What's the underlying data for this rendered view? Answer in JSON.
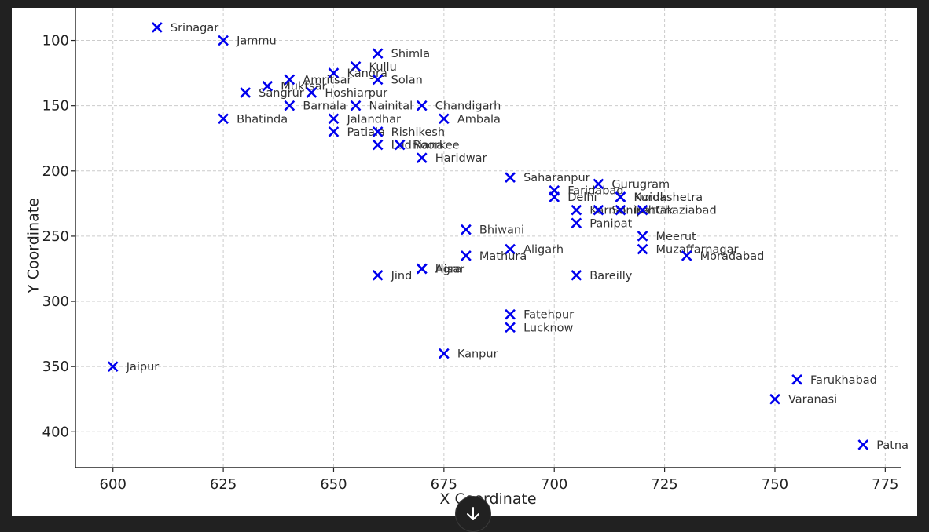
{
  "chart_data": {
    "type": "scatter",
    "xlabel": "X Coordinate",
    "ylabel": "Y Coordinate",
    "xlim": [
      591.5,
      778.5
    ],
    "ylim": [
      427.5,
      75
    ],
    "y_inverted": true,
    "grid": true,
    "x_ticks": [
      "600",
      "625",
      "650",
      "675",
      "700",
      "725",
      "750",
      "775"
    ],
    "y_ticks": [
      "100",
      "150",
      "200",
      "250",
      "300",
      "350",
      "400"
    ],
    "marker": "x",
    "marker_color": "#0000ee",
    "points": [
      {
        "label": "Srinagar",
        "x": 610,
        "y": 90
      },
      {
        "label": "Jammu",
        "x": 625,
        "y": 100
      },
      {
        "label": "Shimla",
        "x": 660,
        "y": 110
      },
      {
        "label": "Kullu",
        "x": 655,
        "y": 120
      },
      {
        "label": "Kangra",
        "x": 650,
        "y": 125
      },
      {
        "label": "Amritsar",
        "x": 640,
        "y": 130
      },
      {
        "label": "Solan",
        "x": 660,
        "y": 130
      },
      {
        "label": "Muktsar",
        "x": 635,
        "y": 135
      },
      {
        "label": "Sangrur",
        "x": 630,
        "y": 140
      },
      {
        "label": "Hoshiarpur",
        "x": 645,
        "y": 140
      },
      {
        "label": "Barnala",
        "x": 640,
        "y": 150
      },
      {
        "label": "Nainital",
        "x": 655,
        "y": 150
      },
      {
        "label": "Chandigarh",
        "x": 670,
        "y": 150
      },
      {
        "label": "Bhatinda",
        "x": 625,
        "y": 160
      },
      {
        "label": "Jalandhar",
        "x": 650,
        "y": 160
      },
      {
        "label": "Ambala",
        "x": 675,
        "y": 160
      },
      {
        "label": "Patiala",
        "x": 650,
        "y": 170
      },
      {
        "label": "Rishikesh",
        "x": 660,
        "y": 170
      },
      {
        "label": "Ludhiana",
        "x": 660,
        "y": 180
      },
      {
        "label": "Roorkee",
        "x": 665,
        "y": 180
      },
      {
        "label": "Haridwar",
        "x": 670,
        "y": 190
      },
      {
        "label": "Saharanpur",
        "x": 690,
        "y": 205
      },
      {
        "label": "Gurugram",
        "x": 710,
        "y": 210
      },
      {
        "label": "Faridabad",
        "x": 700,
        "y": 215
      },
      {
        "label": "Delhi",
        "x": 700,
        "y": 220
      },
      {
        "label": "Noida",
        "x": 715,
        "y": 220
      },
      {
        "label": "Kurukshetra",
        "x": 715,
        "y": 220
      },
      {
        "label": "Karnal",
        "x": 705,
        "y": 230
      },
      {
        "label": "Sonipat",
        "x": 710,
        "y": 230
      },
      {
        "label": "Rohtak",
        "x": 715,
        "y": 230
      },
      {
        "label": "Ghaziabad",
        "x": 720,
        "y": 230
      },
      {
        "label": "Panipat",
        "x": 705,
        "y": 240
      },
      {
        "label": "Bhiwani",
        "x": 680,
        "y": 245
      },
      {
        "label": "Meerut",
        "x": 720,
        "y": 250
      },
      {
        "label": "Aligarh",
        "x": 690,
        "y": 260
      },
      {
        "label": "Muzaffarnagar",
        "x": 720,
        "y": 260
      },
      {
        "label": "Mathura",
        "x": 680,
        "y": 265
      },
      {
        "label": "Moradabad",
        "x": 730,
        "y": 265
      },
      {
        "label": "Agra",
        "x": 670,
        "y": 275
      },
      {
        "label": "Hisar",
        "x": 670,
        "y": 275
      },
      {
        "label": "Jind",
        "x": 660,
        "y": 280
      },
      {
        "label": "Bareilly",
        "x": 705,
        "y": 280
      },
      {
        "label": "Fatehpur",
        "x": 690,
        "y": 310
      },
      {
        "label": "Lucknow",
        "x": 690,
        "y": 320
      },
      {
        "label": "Kanpur",
        "x": 675,
        "y": 340
      },
      {
        "label": "Jaipur",
        "x": 600,
        "y": 350
      },
      {
        "label": "Farukhabad",
        "x": 755,
        "y": 360
      },
      {
        "label": "Varanasi",
        "x": 750,
        "y": 375
      },
      {
        "label": "Patna",
        "x": 770,
        "y": 410
      }
    ]
  },
  "ui": {
    "scroll_down_icon": "arrow-down-icon"
  }
}
